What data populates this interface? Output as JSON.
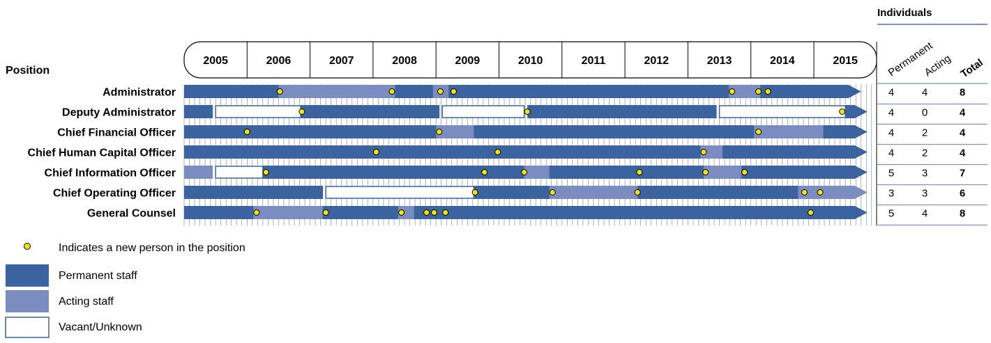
{
  "chart_data": {
    "type": "timeline",
    "title": "",
    "position_header": "Position",
    "years": [
      "2005",
      "2006",
      "2007",
      "2008",
      "2009",
      "2010",
      "2011",
      "2012",
      "2013",
      "2014",
      "2015"
    ],
    "individuals_header": "Individuals",
    "individuals_columns": [
      "Permanent",
      "Acting",
      "Total"
    ],
    "rows": [
      {
        "position": "Administrator",
        "segments": [
          [
            "P",
            2005.0,
            2006.5
          ],
          [
            "A",
            2006.5,
            2008.35
          ],
          [
            "P",
            2008.35,
            2008.95
          ],
          [
            "A",
            2008.95,
            2009.2
          ],
          [
            "P",
            2009.2,
            2013.65
          ],
          [
            "A",
            2013.65,
            2014.05
          ],
          [
            "A",
            2014.05,
            2014.15
          ],
          [
            "P",
            2014.15,
            2015.55
          ]
        ],
        "new_person": [
          2006.52,
          2008.3,
          2009.07,
          2009.28,
          2013.7,
          2014.12,
          2014.27
        ],
        "permanent": "4",
        "acting": "4",
        "total": "8"
      },
      {
        "position": "Deputy Administrator",
        "segments": [
          [
            "P",
            2005.0,
            2005.45
          ],
          [
            "V",
            2005.5,
            2006.85
          ],
          [
            "P",
            2006.85,
            2009.05
          ],
          [
            "V",
            2009.1,
            2010.4
          ],
          [
            "P",
            2010.45,
            2013.45
          ],
          [
            "V",
            2013.5,
            2015.5
          ],
          [
            "P",
            2015.5,
            2015.65
          ]
        ],
        "new_person": [
          2006.87,
          2010.45,
          2015.45
        ],
        "permanent": "4",
        "acting": "0",
        "total": "4"
      },
      {
        "position": "Chief Financial Officer",
        "segments": [
          [
            "P",
            2005.0,
            2006.0
          ],
          [
            "P",
            2006.0,
            2009.0
          ],
          [
            "A",
            2009.0,
            2009.6
          ],
          [
            "P",
            2009.6,
            2014.05
          ],
          [
            "A",
            2014.05,
            2015.15
          ],
          [
            "P",
            2015.15,
            2015.65
          ]
        ],
        "new_person": [
          2006.0,
          2009.05,
          2014.12
        ],
        "permanent": "4",
        "acting": "2",
        "total": "4"
      },
      {
        "position": "Chief Human Capital Officer",
        "segments": [
          [
            "P",
            2005.0,
            2008.05
          ],
          [
            "P",
            2008.05,
            2009.95
          ],
          [
            "P",
            2009.95,
            2013.2
          ],
          [
            "A",
            2013.2,
            2013.55
          ],
          [
            "P",
            2013.55,
            2015.65
          ]
        ],
        "new_person": [
          2008.05,
          2009.98,
          2013.25
        ],
        "permanent": "4",
        "acting": "2",
        "total": "4"
      },
      {
        "position": "Chief Information Officer",
        "segments": [
          [
            "A",
            2005.0,
            2005.45
          ],
          [
            "V",
            2005.5,
            2006.25
          ],
          [
            "P",
            2006.25,
            2009.75
          ],
          [
            "P",
            2009.75,
            2010.4
          ],
          [
            "A",
            2010.4,
            2010.8
          ],
          [
            "P",
            2010.8,
            2012.2
          ],
          [
            "P",
            2012.2,
            2013.25
          ],
          [
            "A",
            2013.25,
            2013.85
          ],
          [
            "P",
            2013.85,
            2015.65
          ]
        ],
        "new_person": [
          2006.3,
          2009.77,
          2010.4,
          2012.23,
          2013.28,
          2013.9
        ],
        "permanent": "5",
        "acting": "3",
        "total": "7"
      },
      {
        "position": "Chief Operating Officer",
        "segments": [
          [
            "P",
            2005.0,
            2007.2
          ],
          [
            "V",
            2007.25,
            2009.6
          ],
          [
            "P",
            2009.6,
            2010.8
          ],
          [
            "A",
            2010.8,
            2012.2
          ],
          [
            "P",
            2012.2,
            2014.75
          ],
          [
            "A",
            2014.75,
            2015.0
          ],
          [
            "A",
            2015.0,
            2015.65
          ]
        ],
        "new_person": [
          2009.62,
          2010.85,
          2012.2,
          2014.85,
          2015.1
        ],
        "permanent": "3",
        "acting": "3",
        "total": "6"
      },
      {
        "position": "General Counsel",
        "segments": [
          [
            "P",
            2005.0,
            2006.1
          ],
          [
            "A",
            2006.1,
            2007.2
          ],
          [
            "P",
            2007.2,
            2008.4
          ],
          [
            "A",
            2008.4,
            2008.65
          ],
          [
            "P",
            2008.65,
            2015.65
          ]
        ],
        "new_person": [
          2006.15,
          2007.25,
          2008.45,
          2008.85,
          2008.97,
          2009.15,
          2014.95
        ],
        "permanent": "5",
        "acting": "4",
        "total": "8"
      }
    ],
    "legend": [
      {
        "key": "new",
        "label": "Indicates a new person in the position"
      },
      {
        "key": "P",
        "label": "Permanent staff"
      },
      {
        "key": "A",
        "label": "Acting staff"
      },
      {
        "key": "V",
        "label": "Vacant/Unknown"
      }
    ],
    "colors": {
      "P": "#3a63a0",
      "A": "#7b8dc0",
      "V": "#ffffff",
      "vacant_border": "#3a63a0",
      "marker": "#f5e400",
      "grid": "#6b7fa8",
      "rule": "#7f93c2"
    }
  }
}
